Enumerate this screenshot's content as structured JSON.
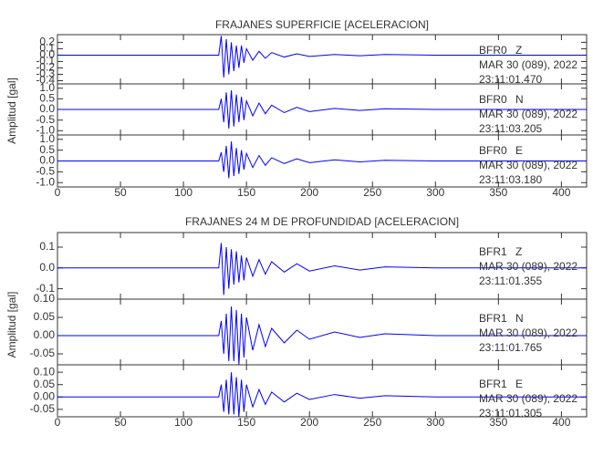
{
  "chart_data": [
    {
      "type": "line",
      "title": "FRAJANES SUPERFICIE [ACELERACION]",
      "ylabel": "Amplitud [gal]",
      "color": "#0000ff",
      "xlim": [
        0,
        420
      ],
      "xticks": [
        0,
        50,
        100,
        150,
        200,
        250,
        300,
        350,
        400
      ],
      "x": [
        0,
        40,
        80,
        120,
        128,
        130,
        132,
        134,
        136,
        138,
        140,
        142,
        144,
        146,
        148,
        150,
        155,
        160,
        165,
        170,
        180,
        190,
        200,
        220,
        240,
        260,
        300,
        340,
        380,
        420
      ],
      "panels": [
        {
          "station": "BFR0",
          "component": "Z",
          "date": "MAR 30 (089), 2022",
          "time": "23:11:01.470",
          "ylim": [
            -0.45,
            0.32
          ],
          "yticks": [
            0.2,
            0.1,
            {
              "value": 0,
              "label": "0.0"
            },
            -0.1,
            -0.2,
            -0.3,
            -0.4
          ],
          "values": [
            0,
            0,
            0,
            0,
            0,
            0.3,
            -0.35,
            0.25,
            -0.3,
            0.2,
            -0.25,
            0.15,
            -0.2,
            0.15,
            -0.12,
            0.1,
            -0.08,
            0.06,
            -0.05,
            0.04,
            -0.03,
            0.02,
            -0.02,
            0.01,
            -0.01,
            0.01,
            0,
            0,
            0,
            0
          ]
        },
        {
          "station": "BFR0",
          "component": "N",
          "date": "MAR 30 (089), 2022",
          "time": "23:11:03.205",
          "ylim": [
            -1.2,
            1.2
          ],
          "yticks": [
            {
              "value": 1,
              "label": "1.0"
            },
            0.5,
            {
              "value": 0,
              "label": "0.0"
            },
            -0.5,
            {
              "value": -1,
              "label": "-1.0"
            }
          ],
          "values": [
            0,
            0,
            0,
            0,
            0,
            0.5,
            -0.6,
            0.8,
            -0.9,
            0.9,
            -0.8,
            0.7,
            -0.6,
            0.6,
            -0.5,
            0.4,
            -0.3,
            0.3,
            -0.2,
            0.2,
            -0.15,
            0.1,
            -0.1,
            0.05,
            -0.05,
            0.03,
            0,
            0,
            0,
            0
          ]
        },
        {
          "station": "BFR0",
          "component": "E",
          "date": "MAR 30 (089), 2022",
          "time": "23:11:03.180",
          "ylim": [
            -1.2,
            1.2
          ],
          "yticks": [
            {
              "value": 1,
              "label": "1.0"
            },
            0.5,
            {
              "value": 0,
              "label": "0.0"
            },
            -0.5,
            {
              "value": -1,
              "label": "-1.0"
            }
          ],
          "values": [
            0,
            0,
            0,
            0,
            0,
            0.4,
            -0.5,
            0.7,
            -0.8,
            0.9,
            -0.7,
            0.6,
            -0.6,
            0.5,
            -0.4,
            0.35,
            -0.3,
            0.25,
            -0.2,
            0.15,
            -0.12,
            0.1,
            -0.08,
            0.05,
            -0.04,
            0.03,
            0,
            0,
            0,
            0
          ]
        }
      ]
    },
    {
      "type": "line",
      "title": "FRAJANES 24 M DE PROFUNDIDAD [ACELERACION]",
      "ylabel": "Amplitud [gal]",
      "color": "#0000ff",
      "xlim": [
        0,
        420
      ],
      "xticks": [
        0,
        50,
        100,
        150,
        200,
        250,
        300,
        350,
        400
      ],
      "x": [
        0,
        40,
        80,
        120,
        128,
        130,
        132,
        134,
        136,
        138,
        140,
        142,
        144,
        146,
        148,
        150,
        155,
        160,
        165,
        170,
        180,
        190,
        200,
        220,
        240,
        260,
        300,
        340,
        380,
        420
      ],
      "panels": [
        {
          "station": "BFR1",
          "component": "Z",
          "date": "MAR 30 (089), 2022",
          "time": "23:11:01.355",
          "ylim": [
            -0.15,
            0.17
          ],
          "yticks": [
            0.1,
            {
              "value": 0,
              "label": "0.0"
            },
            -0.1
          ],
          "values": [
            0,
            0,
            0,
            0,
            0,
            0.12,
            -0.13,
            0.1,
            -0.1,
            0.09,
            -0.08,
            0.08,
            -0.07,
            0.06,
            -0.06,
            0.05,
            -0.04,
            0.04,
            -0.03,
            0.03,
            -0.02,
            0.02,
            -0.015,
            0.01,
            -0.01,
            0.005,
            0,
            0,
            0,
            0
          ]
        },
        {
          "station": "BFR1",
          "component": "N",
          "date": "MAR 30 (089), 2022",
          "time": "23:11:01.765",
          "ylim": [
            -0.08,
            0.1
          ],
          "yticks": [
            {
              "value": 0.1,
              "label": "0.10"
            },
            0.05,
            {
              "value": 0,
              "label": "0.00"
            },
            -0.05
          ],
          "values": [
            0,
            0,
            0,
            0,
            0,
            0.04,
            -0.05,
            0.06,
            -0.07,
            0.08,
            -0.07,
            0.07,
            -0.08,
            0.06,
            -0.06,
            0.05,
            -0.04,
            0.03,
            -0.03,
            0.02,
            -0.02,
            0.015,
            -0.01,
            0.01,
            -0.005,
            0.005,
            0,
            0,
            0,
            0
          ]
        },
        {
          "station": "BFR1",
          "component": "E",
          "date": "MAR 30 (089), 2022",
          "time": "23:11:01.305",
          "ylim": [
            -0.08,
            0.13
          ],
          "yticks": [
            {
              "value": 0.1,
              "label": "0.10"
            },
            0.05,
            {
              "value": 0,
              "label": "0.00"
            },
            -0.05
          ],
          "values": [
            0,
            0,
            0,
            0,
            0,
            0.05,
            -0.06,
            0.07,
            -0.07,
            0.1,
            -0.07,
            0.08,
            -0.08,
            0.07,
            -0.06,
            0.05,
            -0.04,
            0.03,
            -0.03,
            0.02,
            -0.02,
            0.015,
            -0.01,
            0.01,
            -0.005,
            0.005,
            0,
            0,
            0,
            0
          ]
        }
      ]
    }
  ]
}
